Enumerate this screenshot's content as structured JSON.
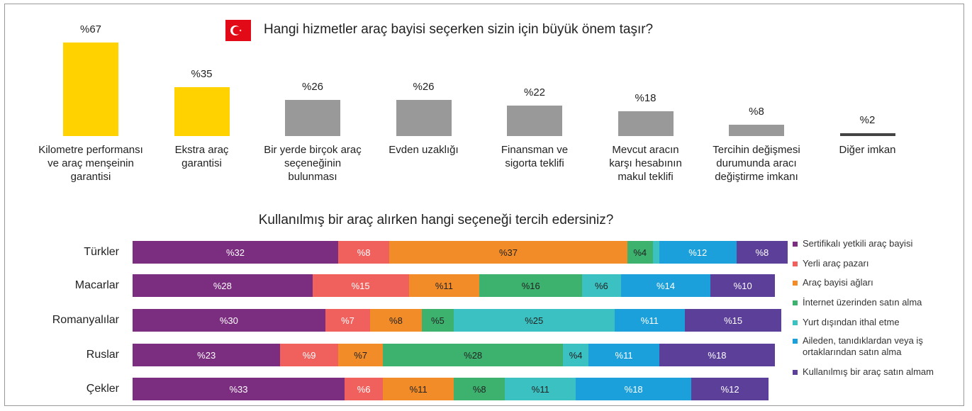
{
  "chart_data": [
    {
      "type": "bar",
      "title": "Hangi hizmetler araç bayisi seçerken sizin için büyük önem taşır?",
      "categories": [
        "Kilometre performansı ve araç menşeinin garantisi",
        "Ekstra araç garantisi",
        "Bir yerde birçok araç seçeneğinin bulunması",
        "Evden uzaklığı",
        "Finansman ve sigorta teklifi",
        "Mevcut aracın karşı hesabının makul teklifi",
        "Tercihin değişmesi durumunda aracı değiştirme imkanı",
        "Diğer imkan"
      ],
      "values": [
        67,
        35,
        26,
        26,
        22,
        18,
        8,
        2
      ],
      "value_labels": [
        "%67",
        "%35",
        "%26",
        "%26",
        "%22",
        "%18",
        "%8",
        "%2"
      ],
      "colors": [
        "#ffd200",
        "#ffd200",
        "#999999",
        "#999999",
        "#999999",
        "#999999",
        "#999999",
        "#444444"
      ]
    },
    {
      "type": "stacked_bar",
      "orientation": "horizontal",
      "title": "Kullanılmış bir araç alırken hangi seçeneği tercih edersiniz?",
      "categories": [
        "Türkler",
        "Macarlar",
        "Romanyalılar",
        "Ruslar",
        "Çekler"
      ],
      "legend": "right",
      "series": [
        {
          "name": "Sertifikalı yetkili araç bayisi",
          "color": "#7b2d7f",
          "values": [
            32,
            28,
            30,
            23,
            33
          ],
          "value_labels": [
            "%32",
            "%28",
            "%30",
            "%23",
            "%33"
          ]
        },
        {
          "name": "Yerli araç pazarı",
          "color": "#f0605d",
          "values": [
            8,
            15,
            7,
            9,
            6
          ],
          "value_labels": [
            "%8",
            "%15",
            "%7",
            "%9",
            "%6"
          ]
        },
        {
          "name": "Araç bayisi ağları",
          "color": "#f28c28",
          "values": [
            37,
            11,
            8,
            7,
            11
          ],
          "value_labels": [
            "%37",
            "%11",
            "%8",
            "%7",
            "%11"
          ]
        },
        {
          "name": "İnternet üzerinden satın alma",
          "color": "#3db26e",
          "values": [
            4,
            16,
            5,
            28,
            8
          ],
          "value_labels": [
            "%4",
            "%16",
            "%5",
            "%28",
            "%8"
          ]
        },
        {
          "name": "Yurt dışından ithal etme",
          "color": "#3bc1c2",
          "values": [
            1,
            6,
            25,
            4,
            11
          ],
          "value_labels": [
            null,
            "%6",
            "%25",
            "%4",
            "%11"
          ]
        },
        {
          "name": "Aileden, tanıdıklardan veya iş ortaklarından satın alma",
          "color": "#1ba0db",
          "values": [
            12,
            14,
            11,
            11,
            18
          ],
          "value_labels": [
            "%12",
            "%14",
            "%11",
            "%11",
            "%18"
          ]
        },
        {
          "name": "Kullanılmış bir araç satın almam",
          "color": "#5b3f99",
          "values": [
            8,
            10,
            15,
            18,
            12
          ],
          "value_labels": [
            "%8",
            "%10",
            "%15",
            "%18",
            "%12"
          ]
        }
      ]
    }
  ]
}
